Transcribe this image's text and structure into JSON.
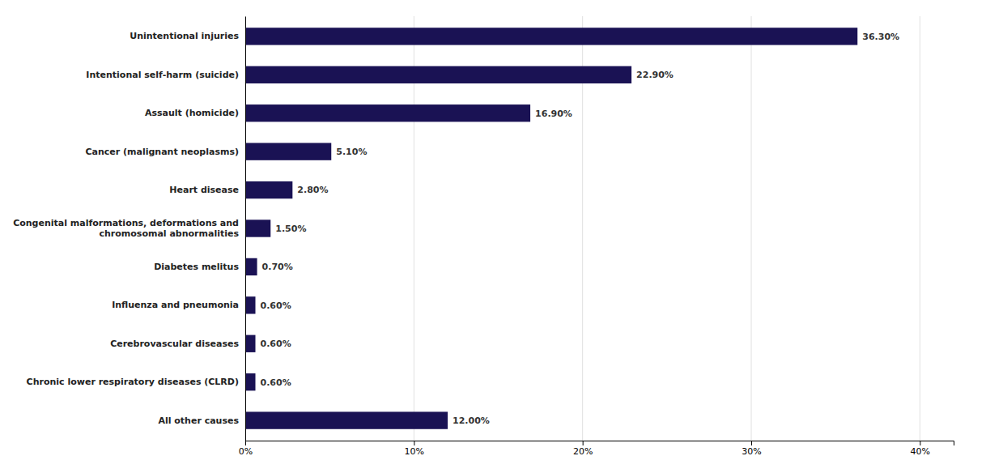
{
  "chart_data": {
    "type": "bar",
    "orientation": "horizontal",
    "categories": [
      "All other causes",
      "Chronic lower respiratory diseases (CLRD)",
      "Cerebrovascular diseases",
      "Influenza and pneumonia",
      "Diabetes melitus",
      "Congenital malformations, deformations and\nchromosomal abnormalities",
      "Heart disease",
      "Cancer (malignant neoplasms)",
      "Assault (homicide)",
      "Intentional self-harm (suicide)",
      "Unintentional injuries"
    ],
    "values": [
      12.0,
      0.6,
      0.6,
      0.6,
      0.7,
      1.5,
      2.8,
      5.1,
      16.9,
      22.9,
      36.3
    ],
    "value_labels": [
      "12.00%",
      "0.60%",
      "0.60%",
      "0.60%",
      "0.70%",
      "1.50%",
      "2.80%",
      "5.10%",
      "16.90%",
      "22.90%",
      "36.30%"
    ],
    "data_labels": true,
    "color": "#1a1254",
    "xlim": [
      0,
      42
    ],
    "xticks": [
      {
        "value": 0,
        "label": "0%"
      },
      {
        "value": 10,
        "label": "10%"
      },
      {
        "value": 20,
        "label": "20%"
      },
      {
        "value": 30,
        "label": "30%"
      },
      {
        "value": 40,
        "label": "40%"
      }
    ],
    "grid": true
  }
}
